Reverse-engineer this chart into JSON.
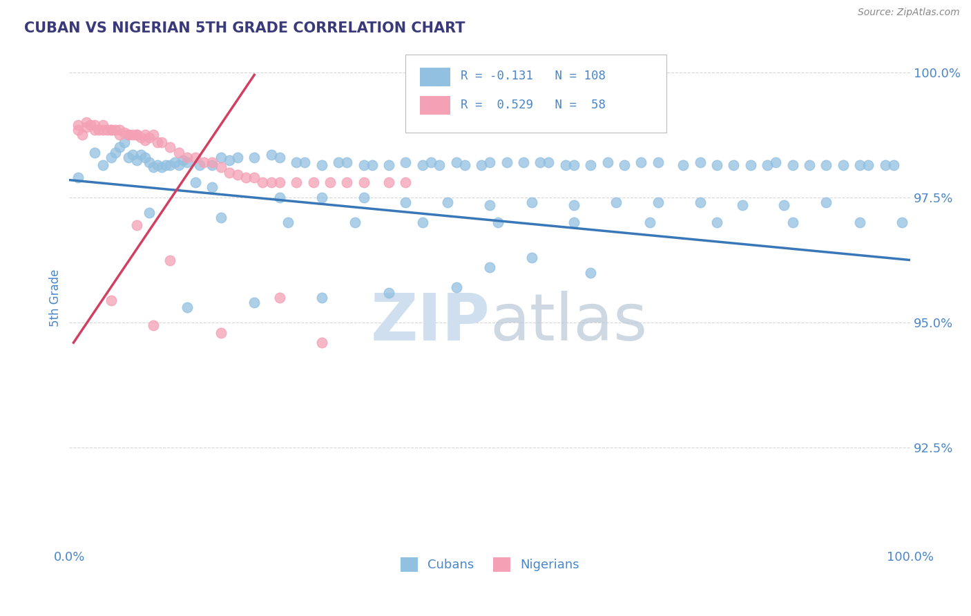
{
  "title": "CUBAN VS NIGERIAN 5TH GRADE CORRELATION CHART",
  "source_text": "Source: ZipAtlas.com",
  "ylabel": "5th Grade",
  "x_lim": [
    0.0,
    1.0
  ],
  "y_lim": [
    0.905,
    1.005
  ],
  "blue_color": "#92c0e0",
  "pink_color": "#f4a0b5",
  "line_blue": "#3878b8",
  "line_pink": "#d04060",
  "title_color": "#3a3a7a",
  "axis_color": "#4a86c8",
  "watermark_color": "#d0dff0",
  "cubans_x": [
    0.01,
    0.03,
    0.04,
    0.05,
    0.055,
    0.06,
    0.065,
    0.07,
    0.075,
    0.08,
    0.085,
    0.09,
    0.095,
    0.1,
    0.105,
    0.11,
    0.115,
    0.12,
    0.125,
    0.13,
    0.135,
    0.14,
    0.155,
    0.17,
    0.18,
    0.19,
    0.2,
    0.22,
    0.24,
    0.25,
    0.27,
    0.28,
    0.3,
    0.32,
    0.33,
    0.35,
    0.36,
    0.38,
    0.4,
    0.42,
    0.43,
    0.44,
    0.46,
    0.47,
    0.49,
    0.5,
    0.52,
    0.54,
    0.56,
    0.57,
    0.59,
    0.6,
    0.62,
    0.64,
    0.66,
    0.68,
    0.7,
    0.73,
    0.75,
    0.77,
    0.79,
    0.81,
    0.83,
    0.84,
    0.86,
    0.88,
    0.9,
    0.92,
    0.94,
    0.95,
    0.97,
    0.98,
    0.15,
    0.17,
    0.25,
    0.3,
    0.35,
    0.4,
    0.45,
    0.5,
    0.55,
    0.6,
    0.65,
    0.7,
    0.75,
    0.8,
    0.85,
    0.9,
    0.095,
    0.18,
    0.26,
    0.34,
    0.42,
    0.51,
    0.6,
    0.69,
    0.77,
    0.86,
    0.94,
    0.99,
    0.5,
    0.55,
    0.62,
    0.46,
    0.38,
    0.3,
    0.22,
    0.14
  ],
  "cubans_y": [
    0.979,
    0.984,
    0.9815,
    0.983,
    0.984,
    0.985,
    0.986,
    0.983,
    0.9835,
    0.9825,
    0.9835,
    0.983,
    0.982,
    0.981,
    0.9815,
    0.981,
    0.9815,
    0.9815,
    0.982,
    0.9815,
    0.9825,
    0.982,
    0.9815,
    0.9815,
    0.983,
    0.9825,
    0.983,
    0.983,
    0.9835,
    0.983,
    0.982,
    0.982,
    0.9815,
    0.982,
    0.982,
    0.9815,
    0.9815,
    0.9815,
    0.982,
    0.9815,
    0.982,
    0.9815,
    0.982,
    0.9815,
    0.9815,
    0.982,
    0.982,
    0.982,
    0.982,
    0.982,
    0.9815,
    0.9815,
    0.9815,
    0.982,
    0.9815,
    0.982,
    0.982,
    0.9815,
    0.982,
    0.9815,
    0.9815,
    0.9815,
    0.9815,
    0.982,
    0.9815,
    0.9815,
    0.9815,
    0.9815,
    0.9815,
    0.9815,
    0.9815,
    0.9815,
    0.978,
    0.977,
    0.975,
    0.975,
    0.975,
    0.974,
    0.974,
    0.9735,
    0.974,
    0.9735,
    0.974,
    0.974,
    0.974,
    0.9735,
    0.9735,
    0.974,
    0.972,
    0.971,
    0.97,
    0.97,
    0.97,
    0.97,
    0.97,
    0.97,
    0.97,
    0.97,
    0.97,
    0.97,
    0.961,
    0.963,
    0.96,
    0.957,
    0.956,
    0.955,
    0.954,
    0.953
  ],
  "nigerians_x": [
    0.01,
    0.01,
    0.015,
    0.02,
    0.02,
    0.025,
    0.03,
    0.03,
    0.035,
    0.04,
    0.04,
    0.045,
    0.05,
    0.05,
    0.055,
    0.06,
    0.06,
    0.065,
    0.07,
    0.07,
    0.075,
    0.08,
    0.08,
    0.085,
    0.09,
    0.09,
    0.095,
    0.1,
    0.105,
    0.11,
    0.12,
    0.13,
    0.14,
    0.15,
    0.16,
    0.17,
    0.18,
    0.19,
    0.2,
    0.21,
    0.22,
    0.23,
    0.24,
    0.25,
    0.27,
    0.29,
    0.31,
    0.33,
    0.35,
    0.38,
    0.4,
    0.08,
    0.12,
    0.25,
    0.05,
    0.1,
    0.18,
    0.3
  ],
  "nigerians_y": [
    0.9895,
    0.9885,
    0.9875,
    0.99,
    0.989,
    0.9895,
    0.9895,
    0.9885,
    0.9885,
    0.9895,
    0.9885,
    0.9885,
    0.9885,
    0.9885,
    0.9885,
    0.9885,
    0.9875,
    0.988,
    0.9875,
    0.9875,
    0.9875,
    0.9875,
    0.9875,
    0.987,
    0.9865,
    0.9875,
    0.987,
    0.9875,
    0.986,
    0.986,
    0.985,
    0.984,
    0.983,
    0.983,
    0.982,
    0.982,
    0.981,
    0.98,
    0.9795,
    0.979,
    0.979,
    0.978,
    0.978,
    0.978,
    0.978,
    0.978,
    0.978,
    0.978,
    0.978,
    0.978,
    0.978,
    0.9695,
    0.9625,
    0.955,
    0.9545,
    0.9495,
    0.948,
    0.946
  ],
  "blue_line_x0": 0.0,
  "blue_line_y0": 0.9785,
  "blue_line_x1": 1.0,
  "blue_line_y1": 0.9625,
  "pink_line_x0": 0.005,
  "pink_line_y0": 0.946,
  "pink_line_x1": 0.22,
  "pink_line_y1": 0.9995
}
